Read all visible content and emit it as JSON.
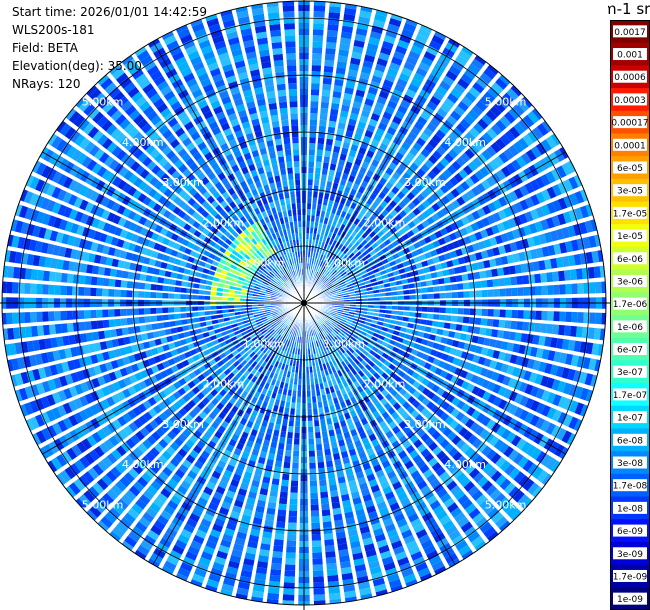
{
  "header": {
    "start_time": "Start time: 2026/01/01 14:42:59",
    "instrument": "WLS200s-181",
    "field": "Field: BETA",
    "elevation": "Elevation(deg): 35.00",
    "nrays": "NRays: 120"
  },
  "colorbar": {
    "title": "m-1 sr-1",
    "ticks": [
      "0.0017",
      "0.001",
      "0.0006",
      "0.0003",
      "0.00017",
      "0.0001",
      "6e-05",
      "3e-05",
      "1.7e-05",
      "1e-05",
      "6e-06",
      "3e-06",
      "1.7e-06",
      "1e-06",
      "6e-07",
      "3e-07",
      "1.7e-07",
      "1e-07",
      "6e-08",
      "3e-08",
      "1.7e-08",
      "1e-08",
      "6e-09",
      "3e-09",
      "1.7e-09",
      "1e-09"
    ],
    "colors": [
      "#800000",
      "#a00000",
      "#cc0000",
      "#ff1a00",
      "#ff5000",
      "#ff8000",
      "#ffa000",
      "#ffc000",
      "#ffe000",
      "#f0ff10",
      "#d0ff30",
      "#b0ff50",
      "#90ff70",
      "#70ff90",
      "#50ffb0",
      "#30ffd0",
      "#10ffff",
      "#00d8ff",
      "#00b0ff",
      "#0088ff",
      "#0060ff",
      "#0038ff",
      "#0010ff",
      "#0000d8",
      "#0000a8",
      "#000080"
    ]
  },
  "chart_data": {
    "type": "heatmap",
    "projection": "polar-ppi",
    "field": "BETA",
    "elevation_deg": 35.0,
    "n_rays": 120,
    "range_max_km": 5.3,
    "range_rings_km": [
      1.0,
      2.0,
      3.0,
      4.0,
      5.0
    ],
    "ring_labels": [
      "1.00km",
      "2.00km",
      "3.00km",
      "4.00km",
      "5.00km"
    ],
    "spoke_angles_deg": [
      0,
      30,
      60,
      90,
      120,
      150,
      180,
      210,
      240,
      270,
      300,
      330
    ],
    "background_level": "3e-08",
    "enhanced_region": {
      "azimuth_deg": [
        270,
        330
      ],
      "range_km": [
        1.0,
        1.6
      ],
      "peak_level": "1.7e-06"
    },
    "grid": true
  }
}
